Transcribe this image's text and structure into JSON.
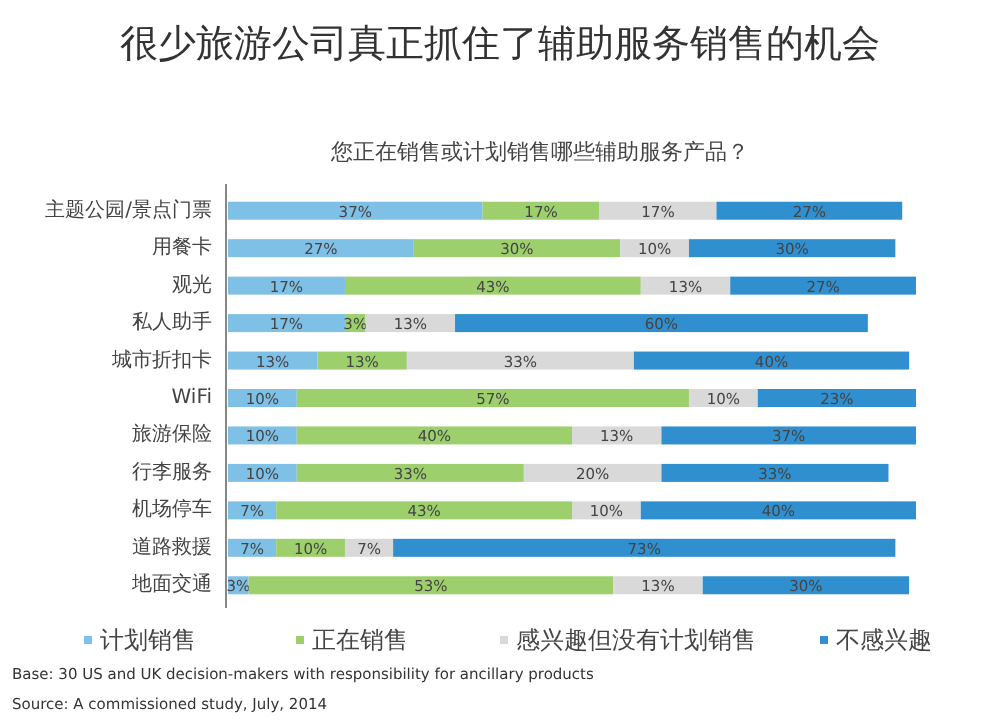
{
  "chart_data": {
    "type": "bar",
    "orientation": "horizontal",
    "stacked": true,
    "legend": "bottom",
    "title": "很少旅游公司真正抓住了辅助服务销售的机会",
    "subtitle": "您正在销售或计划销售哪些辅助服务产品？",
    "categories": [
      "主题公园/景点门票",
      "用餐卡",
      "观光",
      "私人助手",
      "城市折扣卡",
      "WiFi",
      "旅游保险",
      "行李服务",
      "机场停车",
      "道路救援",
      "地面交通"
    ],
    "series": [
      {
        "name": "计划销售",
        "color": "#7fc1e6",
        "values": [
          37,
          27,
          17,
          17,
          13,
          10,
          10,
          10,
          7,
          7,
          3
        ],
        "value_labels": [
          "37%",
          "27%",
          "17%",
          "17%",
          "13%",
          "10%",
          "10%",
          "10%",
          "7%",
          "7%",
          "3%"
        ]
      },
      {
        "name": "正在销售",
        "color": "#9dd06c",
        "values": [
          17,
          30,
          43,
          3,
          13,
          57,
          40,
          33,
          43,
          10,
          53
        ],
        "value_labels": [
          "17%",
          "30%",
          "43%",
          "3%",
          "13%",
          "57%",
          "40%",
          "33%",
          "43%",
          "10%",
          "53%"
        ]
      },
      {
        "name": "感兴趣但没有计划销售",
        "color": "#d9d9d9",
        "values": [
          17,
          10,
          13,
          13,
          33,
          10,
          13,
          20,
          10,
          7,
          13
        ],
        "value_labels": [
          "17%",
          "10%",
          "13%",
          "13%",
          "33%",
          "10%",
          "13%",
          "20%",
          "10%",
          "7%",
          "13%"
        ]
      },
      {
        "name": "不感兴趣",
        "color": "#2f8fcf",
        "values": [
          27,
          30,
          27,
          60,
          40,
          23,
          37,
          33,
          40,
          73,
          30
        ],
        "value_labels": [
          "27%",
          "30%",
          "27%",
          "60%",
          "40%",
          "23%",
          "37%",
          "33%",
          "40%",
          "73%",
          "30%"
        ]
      }
    ],
    "annotations": [
      "Base: 30 US and UK decision-makers with responsibility for ancillary products",
      "Source: A commissioned study, July, 2014"
    ]
  }
}
